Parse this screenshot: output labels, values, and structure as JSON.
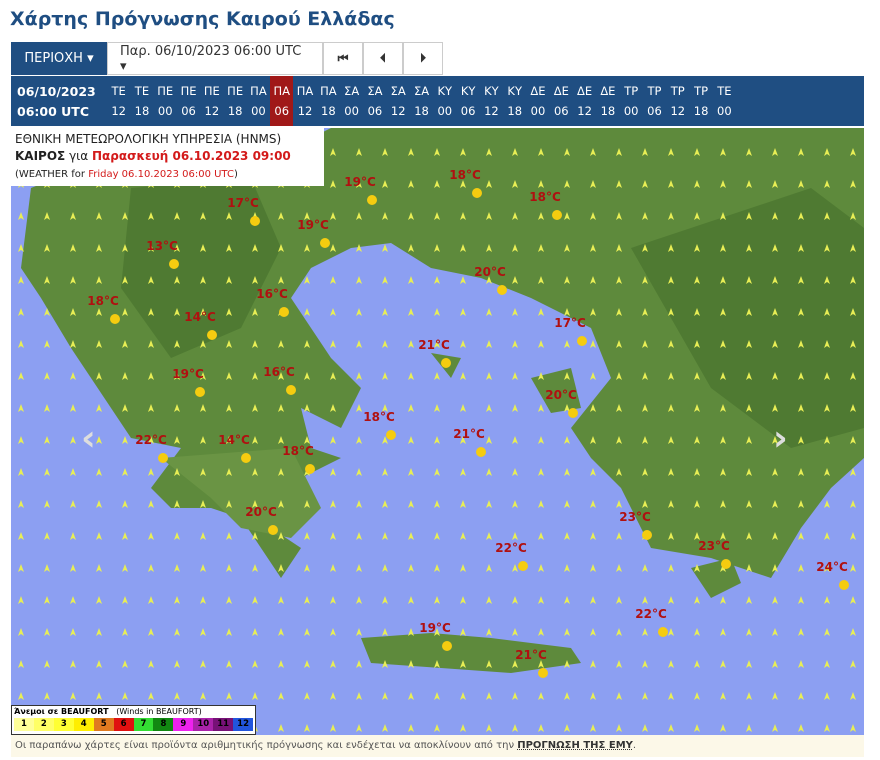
{
  "title": "Χάρτης Πρόγνωσης Καιρού Ελλάδας",
  "toolbar": {
    "region_label": "ΠΕΡΙΟΧΗ ▾",
    "date_select": "Παρ. 06/10/2023 06:00 UTC ▾",
    "first_icon": "⏮",
    "prev_icon": "⏴",
    "next_icon": "⏵"
  },
  "timebar": {
    "date": "06/10/2023",
    "time": "06:00 UTC",
    "steps": [
      [
        "ΤΕ",
        "12"
      ],
      [
        "ΤΕ",
        "18"
      ],
      [
        "ΠΕ",
        "00"
      ],
      [
        "ΠΕ",
        "06"
      ],
      [
        "ΠΕ",
        "12"
      ],
      [
        "ΠΕ",
        "18"
      ],
      [
        "ΠΑ",
        "00"
      ],
      [
        "ΠΑ",
        "06"
      ],
      [
        "ΠΑ",
        "12"
      ],
      [
        "ΠΑ",
        "18"
      ],
      [
        "ΣΑ",
        "00"
      ],
      [
        "ΣΑ",
        "06"
      ],
      [
        "ΣΑ",
        "12"
      ],
      [
        "ΣΑ",
        "18"
      ],
      [
        "ΚΥ",
        "00"
      ],
      [
        "ΚΥ",
        "06"
      ],
      [
        "ΚΥ",
        "12"
      ],
      [
        "ΚΥ",
        "18"
      ],
      [
        "ΔΕ",
        "00"
      ],
      [
        "ΔΕ",
        "06"
      ],
      [
        "ΔΕ",
        "12"
      ],
      [
        "ΔΕ",
        "18"
      ],
      [
        "ΤΡ",
        "00"
      ],
      [
        "ΤΡ",
        "06"
      ],
      [
        "ΤΡ",
        "12"
      ],
      [
        "ΤΡ",
        "18"
      ],
      [
        "ΤΕ",
        "00"
      ]
    ],
    "active_index": 7
  },
  "info": {
    "agency": "ΕΘΝΙΚΗ ΜΕΤΕΩΡΟΛΟΓΙΚΗ ΥΠΗΡΕΣΙΑ (HNMS)",
    "weather": "ΚΑΙΡΟΣ",
    "for": "για",
    "valid": "Παρασκευή 06.10.2023 09:00",
    "en_prefix": "(WEATHER for ",
    "en_valid": "Friday 06.10.2023 06:00 UTC",
    ")": ")"
  },
  "temperatures": [
    "19°C",
    "18°C",
    "17°C",
    "18°C",
    "19°C",
    "13°C",
    "20°C",
    "16°C",
    "18°C",
    "14°C",
    "17°C",
    "21°C",
    "19°C",
    "16°C",
    "20°C",
    "18°C",
    "22°C",
    "14°C",
    "21°C",
    "18°C",
    "20°C",
    "23°C",
    "22°C",
    "23°C",
    "24°C",
    "22°C",
    "19°C",
    "21°C"
  ],
  "legend": {
    "title": "Άνεμοι σε BEAUFORT",
    "subtitle": "(Winds in BEAUFORT)",
    "scale": [
      "1",
      "2",
      "3",
      "4",
      "5",
      "6",
      "7",
      "8",
      "9",
      "10",
      "11",
      "12"
    ],
    "colors": [
      "#ffff99",
      "#ffff66",
      "#ffff33",
      "#ffee00",
      "#e07a20",
      "#e01010",
      "#33dd33",
      "#118811",
      "#ee22ee",
      "#aa22aa",
      "#771177",
      "#2255dd"
    ]
  },
  "footer": {
    "text": "Οι παραπάνω χάρτες είναι προϊόντα αριθμητικής πρόγνωσης και ενδέχεται να αποκλίνουν από την ",
    "link": "ΠΡΟΓΝΩΣΗ ΤΗΣ ΕΜΥ",
    "end": "."
  },
  "colors": {
    "brand": "#1f4e82",
    "active": "#a01818",
    "sea": "#8c9ff2",
    "land": "#5e8a3c",
    "temp": "#b01010"
  }
}
